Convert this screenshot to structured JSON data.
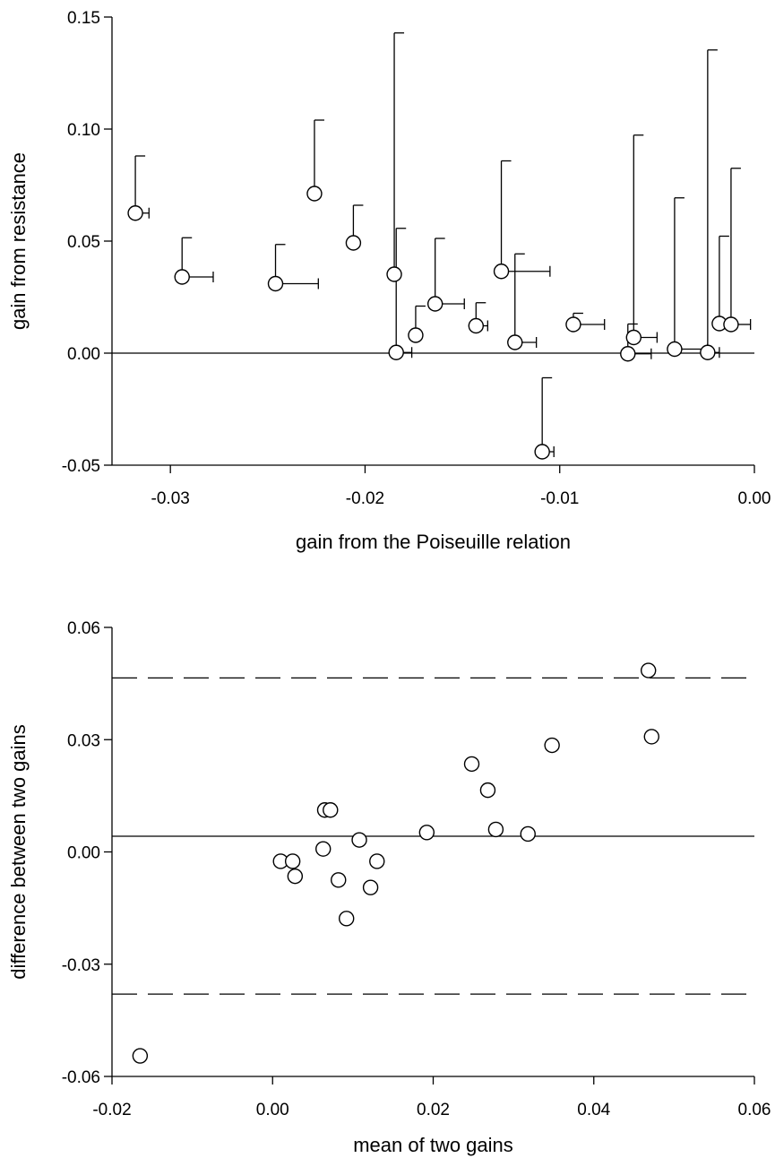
{
  "chart_data": [
    {
      "type": "scatter",
      "xlabel": "gain from the Poiseuille relation",
      "ylabel": "gain from resistance",
      "xlim": [
        -0.033,
        0.0
      ],
      "ylim": [
        -0.05,
        0.15
      ],
      "xticks": [
        "-0.03",
        "-0.02",
        "-0.01",
        "0.00"
      ],
      "xtick_values": [
        -0.03,
        -0.02,
        -0.01,
        0.0
      ],
      "yticks": [
        "-0.05",
        "0.00",
        "0.05",
        "0.10",
        "0.15"
      ],
      "ytick_values": [
        -0.05,
        0.0,
        0.05,
        0.1,
        0.15
      ],
      "reference_lines": [
        {
          "axis": "y",
          "value": 0.0,
          "style": "solid"
        }
      ],
      "grid": false,
      "error_bars": "one-sided: positive x error and positive y error (except one negative-y point with upward bar)",
      "points": [
        {
          "x": -0.0318,
          "y": 0.0625,
          "x_err": 0.0007,
          "y_err": 0.0255
        },
        {
          "x": -0.0294,
          "y": 0.034,
          "x_err": 0.0016,
          "y_err": 0.0175
        },
        {
          "x": -0.0246,
          "y": 0.031,
          "x_err": 0.0022,
          "y_err": 0.0175
        },
        {
          "x": -0.0226,
          "y": 0.0712,
          "x_err": 0.0,
          "y_err": 0.0328
        },
        {
          "x": -0.0206,
          "y": 0.0492,
          "x_err": 0.0,
          "y_err": 0.0168
        },
        {
          "x": -0.0185,
          "y": 0.0352,
          "x_err": 0.0,
          "y_err": 0.1077
        },
        {
          "x": -0.0184,
          "y": 0.0003,
          "x_err": 0.0008,
          "y_err": 0.0554
        },
        {
          "x": -0.0174,
          "y": 0.008,
          "x_err": 0.0,
          "y_err": 0.013
        },
        {
          "x": -0.0164,
          "y": 0.022,
          "x_err": 0.0015,
          "y_err": 0.0292
        },
        {
          "x": -0.0143,
          "y": 0.0122,
          "x_err": 0.0006,
          "y_err": 0.0103
        },
        {
          "x": -0.013,
          "y": 0.0365,
          "x_err": 0.0025,
          "y_err": 0.0493
        },
        {
          "x": -0.0123,
          "y": 0.0048,
          "x_err": 0.0011,
          "y_err": 0.0395
        },
        {
          "x": -0.0109,
          "y": -0.044,
          "x_err": 0.0006,
          "y_err": 0.033
        },
        {
          "x": -0.0093,
          "y": 0.0128,
          "x_err": 0.0016,
          "y_err": 0.005
        },
        {
          "x": -0.0065,
          "y": -0.0003,
          "x_err": 0.0012,
          "y_err": 0.0133
        },
        {
          "x": -0.0062,
          "y": 0.007,
          "x_err": 0.0012,
          "y_err": 0.0903
        },
        {
          "x": -0.0041,
          "y": 0.0018,
          "x_err": 0.0017,
          "y_err": 0.0675
        },
        {
          "x": -0.0024,
          "y": 0.0003,
          "x_err": 0.0006,
          "y_err": 0.135
        },
        {
          "x": -0.0018,
          "y": 0.0132,
          "x_err": 0.0,
          "y_err": 0.039
        },
        {
          "x": -0.0012,
          "y": 0.0128,
          "x_err": 0.001,
          "y_err": 0.0697
        }
      ]
    },
    {
      "type": "scatter",
      "xlabel": "mean of two gains",
      "ylabel": "difference between two gains",
      "xlim": [
        -0.02,
        0.06
      ],
      "ylim": [
        -0.06,
        0.06
      ],
      "xticks": [
        "-0.02",
        "0.00",
        "0.02",
        "0.04",
        "0.06"
      ],
      "xtick_values": [
        -0.02,
        0.0,
        0.02,
        0.04,
        0.06
      ],
      "yticks": [
        "-0.06",
        "-0.03",
        "0.00",
        "0.03",
        "0.06"
      ],
      "ytick_values": [
        -0.06,
        -0.03,
        0.0,
        0.03,
        0.06
      ],
      "reference_lines": [
        {
          "axis": "y",
          "value": 0.0042,
          "style": "solid"
        },
        {
          "axis": "y",
          "value": 0.0465,
          "style": "dashed"
        },
        {
          "axis": "y",
          "value": -0.038,
          "style": "dashed"
        }
      ],
      "grid": false,
      "points": [
        {
          "x": -0.0165,
          "y": -0.0545
        },
        {
          "x": 0.001,
          "y": -0.0025
        },
        {
          "x": 0.0025,
          "y": -0.0025
        },
        {
          "x": 0.0028,
          "y": -0.0065
        },
        {
          "x": 0.0063,
          "y": 0.0008
        },
        {
          "x": 0.0065,
          "y": 0.0112
        },
        {
          "x": 0.0072,
          "y": 0.0112
        },
        {
          "x": 0.0082,
          "y": -0.0075
        },
        {
          "x": 0.0092,
          "y": -0.0178
        },
        {
          "x": 0.0108,
          "y": 0.0032
        },
        {
          "x": 0.0122,
          "y": -0.0095
        },
        {
          "x": 0.013,
          "y": -0.0025
        },
        {
          "x": 0.0192,
          "y": 0.0052
        },
        {
          "x": 0.0248,
          "y": 0.0235
        },
        {
          "x": 0.0268,
          "y": 0.0165
        },
        {
          "x": 0.0278,
          "y": 0.006
        },
        {
          "x": 0.0318,
          "y": 0.0048
        },
        {
          "x": 0.0348,
          "y": 0.0285
        },
        {
          "x": 0.0468,
          "y": 0.0485
        },
        {
          "x": 0.0472,
          "y": 0.0308
        }
      ]
    }
  ]
}
